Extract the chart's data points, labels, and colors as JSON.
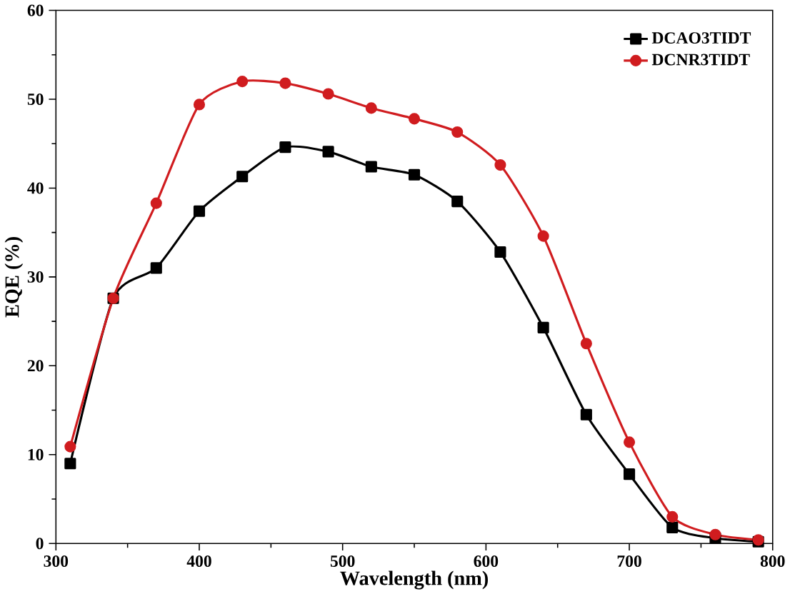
{
  "chart_data": {
    "type": "line",
    "xlabel": "Wavelength (nm)",
    "ylabel": "EQE (%)",
    "x": [
      310,
      340,
      370,
      400,
      430,
      460,
      490,
      520,
      550,
      580,
      610,
      640,
      670,
      700,
      730,
      760,
      790
    ],
    "series": [
      {
        "name": "DCAO3TIDT",
        "color": "#000000",
        "marker": "square",
        "values": [
          9.0,
          27.6,
          31,
          37.4,
          41.3,
          44.6,
          44.1,
          42.4,
          41.5,
          38.5,
          32.8,
          24.3,
          14.5,
          7.8,
          1.8,
          0.6,
          0.2
        ]
      },
      {
        "name": "DCNR3TIDT",
        "color": "#d01c1f",
        "marker": "circle",
        "values": [
          10.9,
          27.6,
          38.3,
          49.4,
          52,
          51.8,
          50.6,
          49,
          47.8,
          46.3,
          42.6,
          34.6,
          22.5,
          11.4,
          3.0,
          1.0,
          0.4
        ]
      }
    ],
    "xlim": [
      300,
      800
    ],
    "ylim": [
      0,
      60
    ],
    "xticks": [
      300,
      400,
      500,
      600,
      700,
      800
    ],
    "yticks": [
      0,
      10,
      20,
      30,
      40,
      50,
      60
    ],
    "legend": "top right",
    "grid": false,
    "line_style": "solid"
  }
}
